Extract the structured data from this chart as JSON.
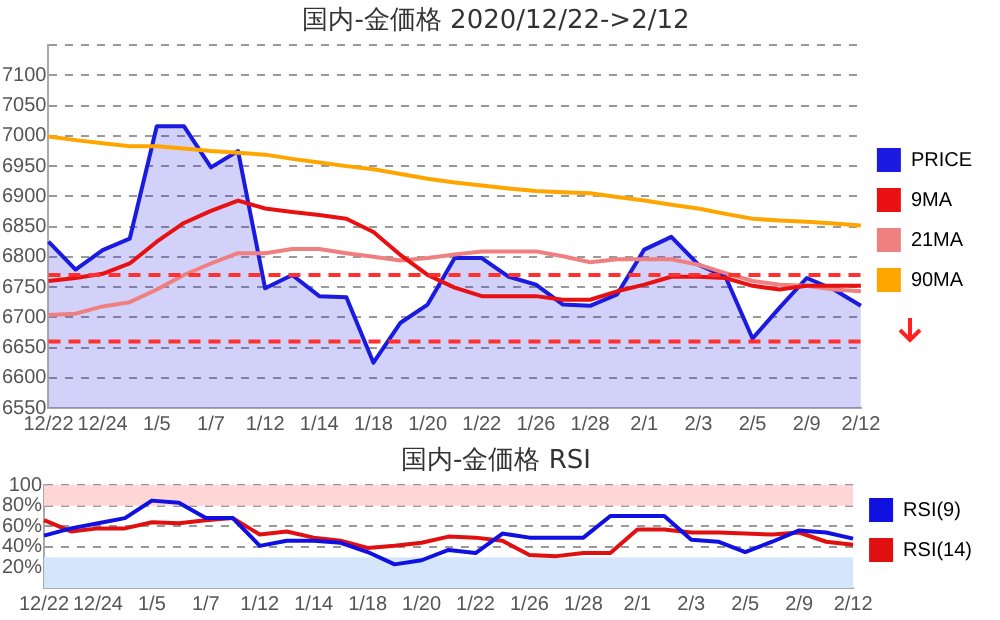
{
  "chart_data": [
    {
      "type": "line",
      "title": "国内-金価格 2020/12/22->2/12",
      "categories": [
        "12/22",
        null,
        "12/24",
        null,
        "1/5",
        null,
        "1/7",
        null,
        "1/12",
        null,
        "1/14",
        null,
        "1/18",
        null,
        "1/20",
        null,
        "1/22",
        null,
        "1/26",
        null,
        "1/28",
        null,
        "2/1",
        null,
        "2/3",
        null,
        "2/5",
        null,
        "2/9",
        null,
        "2/12"
      ],
      "series": [
        {
          "name": "PRICE",
          "type": "area",
          "color": "#1a1ae0",
          "values": [
            6825,
            6779,
            6811,
            6830,
            7016,
            7016,
            6948,
            6975,
            6748,
            6770,
            6735,
            6733,
            6625,
            6691,
            6721,
            6798,
            6798,
            6767,
            6754,
            6721,
            6719,
            6738,
            6812,
            6833,
            6787,
            6767,
            6665,
            6716,
            6765,
            6746,
            6719
          ]
        },
        {
          "name": "9MA",
          "color": "#e81010",
          "values": [
            6760,
            6765,
            6772,
            6789,
            6825,
            6856,
            6876,
            6893,
            6880,
            6874,
            6869,
            6863,
            6841,
            6803,
            6770,
            6749,
            6735,
            6735,
            6735,
            6729,
            6729,
            6743,
            6754,
            6767,
            6767,
            6765,
            6752,
            6746,
            6752,
            6752,
            6752
          ]
        },
        {
          "name": "21MA",
          "color": "#f08080",
          "values": [
            6704,
            6706,
            6718,
            6725,
            6746,
            6770,
            6789,
            6806,
            6806,
            6813,
            6813,
            6806,
            6800,
            6794,
            6798,
            6804,
            6809,
            6809,
            6809,
            6801,
            6791,
            6796,
            6796,
            6796,
            6787,
            6773,
            6760,
            6754,
            6752,
            6746,
            6743
          ]
        },
        {
          "name": "90MA",
          "color": "#ffa500",
          "values": [
            6999,
            6993,
            6988,
            6983,
            6983,
            6979,
            6975,
            6972,
            6969,
            6962,
            6956,
            6950,
            6945,
            6937,
            6929,
            6923,
            6918,
            6913,
            6909,
            6907,
            6905,
            6899,
            6893,
            6886,
            6880,
            6871,
            6863,
            6860,
            6858,
            6855,
            6852
          ]
        }
      ],
      "ylim": [
        6550,
        7150
      ],
      "yticks": [
        6550,
        6600,
        6650,
        6700,
        6750,
        6800,
        6850,
        6900,
        6950,
        7000,
        7050,
        7100,
        {
          "value": 7150,
          "label": null
        }
      ],
      "ref_lines": [
        {
          "axis": "y",
          "value": 6770,
          "color": "#ff3030",
          "line_style": "dashed"
        },
        {
          "axis": "y",
          "value": 6660,
          "color": "#ff3030",
          "line_style": "dashed"
        }
      ],
      "grid": "y",
      "legend": "right",
      "marker": "none"
    },
    {
      "type": "line",
      "title": "国内-金価格 RSI",
      "categories": [
        "12/22",
        null,
        "12/24",
        null,
        "1/5",
        null,
        "1/7",
        null,
        "1/12",
        null,
        "1/14",
        null,
        "1/18",
        null,
        "1/20",
        null,
        "1/22",
        null,
        "1/26",
        null,
        "1/28",
        null,
        "2/1",
        null,
        "2/3",
        null,
        "2/5",
        null,
        "2/9",
        null,
        "2/12"
      ],
      "series": [
        {
          "name": "RSI(9)",
          "color": "#1010e0",
          "values": [
            51,
            58,
            63,
            68,
            85,
            83,
            68,
            68,
            41,
            46,
            46,
            44,
            35,
            23,
            27,
            37,
            34,
            53,
            49,
            49,
            49,
            70,
            70,
            70,
            47,
            45,
            35,
            45,
            56,
            54,
            48
          ]
        },
        {
          "name": "RSI(14)",
          "color": "#e01010",
          "values": [
            66,
            55,
            58,
            58,
            64,
            63,
            66,
            68,
            52,
            55,
            49,
            46,
            39,
            41,
            44,
            50,
            49,
            46,
            32,
            31,
            34,
            34,
            57,
            57,
            54,
            54,
            53,
            52,
            54,
            45,
            42
          ]
        }
      ],
      "ylim": [
        0,
        100
      ],
      "yticks": [
        {
          "value": 20,
          "label": "20%"
        },
        {
          "value": 40,
          "label": "40%"
        },
        {
          "value": 60,
          "label": "60%"
        },
        {
          "value": 80,
          "label": "80%"
        },
        100
      ],
      "bands": [
        {
          "axis": "y",
          "from": 80,
          "to": 100,
          "color": "#ffd6d6"
        },
        {
          "axis": "y",
          "from": 0,
          "to": 30,
          "color": "#d4e6fb"
        }
      ],
      "grid": "y",
      "legend": "right",
      "marker": "none"
    }
  ]
}
